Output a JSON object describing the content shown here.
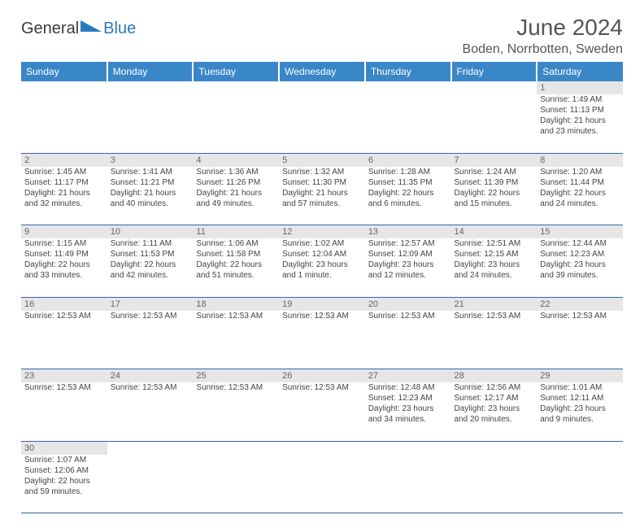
{
  "brand": {
    "general": "General",
    "blue": "Blue"
  },
  "title": "June 2024",
  "location": "Boden, Norrbotten, Sweden",
  "colors": {
    "header_bg": "#3a87c8",
    "header_text": "#ffffff",
    "daynum_bg": "#e6e6e6",
    "daynum_text": "#666666",
    "body_text": "#444444",
    "border": "#2a6aa8",
    "brand_gray": "#3a3a3a",
    "brand_blue": "#2a7ab8"
  },
  "typography": {
    "title_fontsize": 28,
    "location_fontsize": 16,
    "header_fontsize": 12,
    "daynum_fontsize": 11,
    "body_fontsize": 10
  },
  "weekdays": [
    "Sunday",
    "Monday",
    "Tuesday",
    "Wednesday",
    "Thursday",
    "Friday",
    "Saturday"
  ],
  "weeks": [
    {
      "nums": [
        "",
        "",
        "",
        "",
        "",
        "",
        "1"
      ],
      "cells": [
        null,
        null,
        null,
        null,
        null,
        null,
        {
          "sunrise": "Sunrise: 1:49 AM",
          "sunset": "Sunset: 11:13 PM",
          "daylight": "Daylight: 21 hours and 23 minutes."
        }
      ]
    },
    {
      "nums": [
        "2",
        "3",
        "4",
        "5",
        "6",
        "7",
        "8"
      ],
      "cells": [
        {
          "sunrise": "Sunrise: 1:45 AM",
          "sunset": "Sunset: 11:17 PM",
          "daylight": "Daylight: 21 hours and 32 minutes."
        },
        {
          "sunrise": "Sunrise: 1:41 AM",
          "sunset": "Sunset: 11:21 PM",
          "daylight": "Daylight: 21 hours and 40 minutes."
        },
        {
          "sunrise": "Sunrise: 1:36 AM",
          "sunset": "Sunset: 11:26 PM",
          "daylight": "Daylight: 21 hours and 49 minutes."
        },
        {
          "sunrise": "Sunrise: 1:32 AM",
          "sunset": "Sunset: 11:30 PM",
          "daylight": "Daylight: 21 hours and 57 minutes."
        },
        {
          "sunrise": "Sunrise: 1:28 AM",
          "sunset": "Sunset: 11:35 PM",
          "daylight": "Daylight: 22 hours and 6 minutes."
        },
        {
          "sunrise": "Sunrise: 1:24 AM",
          "sunset": "Sunset: 11:39 PM",
          "daylight": "Daylight: 22 hours and 15 minutes."
        },
        {
          "sunrise": "Sunrise: 1:20 AM",
          "sunset": "Sunset: 11:44 PM",
          "daylight": "Daylight: 22 hours and 24 minutes."
        }
      ]
    },
    {
      "nums": [
        "9",
        "10",
        "11",
        "12",
        "13",
        "14",
        "15"
      ],
      "cells": [
        {
          "sunrise": "Sunrise: 1:15 AM",
          "sunset": "Sunset: 11:49 PM",
          "daylight": "Daylight: 22 hours and 33 minutes."
        },
        {
          "sunrise": "Sunrise: 1:11 AM",
          "sunset": "Sunset: 11:53 PM",
          "daylight": "Daylight: 22 hours and 42 minutes."
        },
        {
          "sunrise": "Sunrise: 1:06 AM",
          "sunset": "Sunset: 11:58 PM",
          "daylight": "Daylight: 22 hours and 51 minutes."
        },
        {
          "sunrise": "Sunrise: 1:02 AM",
          "sunset": "Sunset: 12:04 AM",
          "daylight": "Daylight: 23 hours and 1 minute."
        },
        {
          "sunrise": "Sunrise: 12:57 AM",
          "sunset": "Sunset: 12:09 AM",
          "daylight": "Daylight: 23 hours and 12 minutes."
        },
        {
          "sunrise": "Sunrise: 12:51 AM",
          "sunset": "Sunset: 12:15 AM",
          "daylight": "Daylight: 23 hours and 24 minutes."
        },
        {
          "sunrise": "Sunrise: 12:44 AM",
          "sunset": "Sunset: 12:23 AM",
          "daylight": "Daylight: 23 hours and 39 minutes."
        }
      ]
    },
    {
      "nums": [
        "16",
        "17",
        "18",
        "19",
        "20",
        "21",
        "22"
      ],
      "cells": [
        {
          "sunrise": "Sunrise: 12:53 AM"
        },
        {
          "sunrise": "Sunrise: 12:53 AM"
        },
        {
          "sunrise": "Sunrise: 12:53 AM"
        },
        {
          "sunrise": "Sunrise: 12:53 AM"
        },
        {
          "sunrise": "Sunrise: 12:53 AM"
        },
        {
          "sunrise": "Sunrise: 12:53 AM"
        },
        {
          "sunrise": "Sunrise: 12:53 AM"
        }
      ]
    },
    {
      "nums": [
        "23",
        "24",
        "25",
        "26",
        "27",
        "28",
        "29"
      ],
      "cells": [
        {
          "sunrise": "Sunrise: 12:53 AM"
        },
        {
          "sunrise": "Sunrise: 12:53 AM"
        },
        {
          "sunrise": "Sunrise: 12:53 AM"
        },
        {
          "sunrise": "Sunrise: 12:53 AM"
        },
        {
          "sunrise": "Sunrise: 12:48 AM",
          "sunset": "Sunset: 12:23 AM",
          "daylight": "Daylight: 23 hours and 34 minutes."
        },
        {
          "sunrise": "Sunrise: 12:56 AM",
          "sunset": "Sunset: 12:17 AM",
          "daylight": "Daylight: 23 hours and 20 minutes."
        },
        {
          "sunrise": "Sunrise: 1:01 AM",
          "sunset": "Sunset: 12:11 AM",
          "daylight": "Daylight: 23 hours and 9 minutes."
        }
      ]
    },
    {
      "nums": [
        "30",
        "",
        "",
        "",
        "",
        "",
        ""
      ],
      "cells": [
        {
          "sunrise": "Sunrise: 1:07 AM",
          "sunset": "Sunset: 12:06 AM",
          "daylight": "Daylight: 22 hours and 59 minutes."
        },
        null,
        null,
        null,
        null,
        null,
        null
      ]
    }
  ]
}
